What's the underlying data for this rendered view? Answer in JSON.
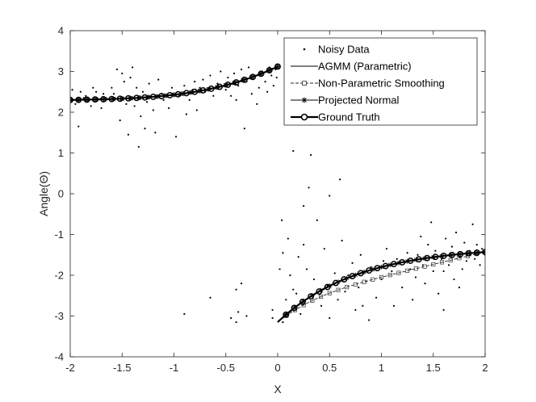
{
  "chart_data": {
    "type": "scatter",
    "title": "",
    "xlabel": "X",
    "ylabel": "Angle(Θ)",
    "xlim": [
      -2,
      2
    ],
    "ylim": [
      -4,
      4
    ],
    "xticks": [
      "-2",
      "-1.5",
      "-1",
      "-0.5",
      "0",
      "0.5",
      "1",
      "1.5",
      "2"
    ],
    "yticks": [
      "4",
      "3",
      "2",
      "1",
      "0",
      "-1",
      "-2",
      "-3",
      "-4"
    ],
    "grid": false,
    "legend_position": "top-right",
    "series": [
      {
        "name": "Noisy Data",
        "style": "dots",
        "points": [
          [
            -1.98,
            2.55
          ],
          [
            -1.95,
            2.2
          ],
          [
            -1.92,
            1.65
          ],
          [
            -1.9,
            2.5
          ],
          [
            -1.87,
            2.35
          ],
          [
            -1.85,
            2.4
          ],
          [
            -1.8,
            2.15
          ],
          [
            -1.78,
            2.6
          ],
          [
            -1.75,
            2.5
          ],
          [
            -1.7,
            2.1
          ],
          [
            -1.68,
            2.45
          ],
          [
            -1.62,
            2.3
          ],
          [
            -1.6,
            2.6
          ],
          [
            -1.58,
            2.45
          ],
          [
            -1.55,
            3.05
          ],
          [
            -1.52,
            1.8
          ],
          [
            -1.5,
            2.95
          ],
          [
            -1.48,
            2.75
          ],
          [
            -1.46,
            2.2
          ],
          [
            -1.44,
            1.45
          ],
          [
            -1.42,
            2.85
          ],
          [
            -1.4,
            3.1
          ],
          [
            -1.38,
            2.15
          ],
          [
            -1.36,
            2.6
          ],
          [
            -1.34,
            1.15
          ],
          [
            -1.32,
            1.9
          ],
          [
            -1.3,
            2.5
          ],
          [
            -1.28,
            1.6
          ],
          [
            -1.26,
            2.25
          ],
          [
            -1.24,
            2.7
          ],
          [
            -1.2,
            2.05
          ],
          [
            -1.18,
            1.5
          ],
          [
            -1.15,
            2.8
          ],
          [
            -1.12,
            2.45
          ],
          [
            -1.1,
            2.3
          ],
          [
            -1.05,
            2.1
          ],
          [
            -1.02,
            2.6
          ],
          [
            -0.98,
            1.4
          ],
          [
            -0.95,
            2.4
          ],
          [
            -0.9,
            2.65
          ],
          [
            -0.88,
            1.95
          ],
          [
            -0.85,
            2.3
          ],
          [
            -0.82,
            2.55
          ],
          [
            -0.8,
            2.75
          ],
          [
            -0.78,
            2.05
          ],
          [
            -0.75,
            2.6
          ],
          [
            -0.72,
            2.8
          ],
          [
            -0.7,
            2.5
          ],
          [
            -0.65,
            2.9
          ],
          [
            -0.62,
            2.4
          ],
          [
            -0.58,
            2.7
          ],
          [
            -0.55,
            3.0
          ],
          [
            -0.5,
            2.55
          ],
          [
            -0.48,
            2.85
          ],
          [
            -0.45,
            2.4
          ],
          [
            -0.42,
            2.95
          ],
          [
            -0.4,
            2.3
          ],
          [
            -0.38,
            2.65
          ],
          [
            -0.35,
            3.05
          ],
          [
            -0.32,
            1.6
          ],
          [
            -0.3,
            2.75
          ],
          [
            -0.28,
            3.1
          ],
          [
            -0.25,
            2.45
          ],
          [
            -0.22,
            2.9
          ],
          [
            -0.2,
            2.2
          ],
          [
            -0.18,
            2.6
          ],
          [
            -0.15,
            3.0
          ],
          [
            -0.12,
            2.75
          ],
          [
            -0.1,
            2.5
          ],
          [
            -0.08,
            3.1
          ],
          [
            -0.06,
            2.9
          ],
          [
            -0.04,
            2.65
          ],
          [
            -0.02,
            3.05
          ],
          [
            -0.01,
            2.85
          ],
          [
            -0.9,
            -2.95
          ],
          [
            -0.65,
            -2.55
          ],
          [
            -0.45,
            -3.05
          ],
          [
            -0.4,
            -3.15
          ],
          [
            -0.4,
            -2.35
          ],
          [
            -0.38,
            -2.9
          ],
          [
            -0.35,
            -2.2
          ],
          [
            -0.3,
            -3.0
          ],
          [
            -0.05,
            -3.05
          ],
          [
            -0.05,
            -2.85
          ],
          [
            0.02,
            -1.85
          ],
          [
            0.04,
            -0.65
          ],
          [
            0.05,
            -3.15
          ],
          [
            0.08,
            -2.6
          ],
          [
            0.1,
            -1.1
          ],
          [
            0.12,
            -2.0
          ],
          [
            0.15,
            1.05
          ],
          [
            0.18,
            -2.45
          ],
          [
            0.2,
            -1.55
          ],
          [
            0.22,
            -2.95
          ],
          [
            0.25,
            -0.3
          ],
          [
            0.28,
            -1.85
          ],
          [
            0.3,
            0.15
          ],
          [
            0.32,
            0.95
          ],
          [
            0.35,
            -2.1
          ],
          [
            0.38,
            -0.65
          ],
          [
            0.42,
            -2.75
          ],
          [
            0.45,
            -1.35
          ],
          [
            0.48,
            -2.25
          ],
          [
            0.5,
            -3.05
          ],
          [
            0.55,
            -1.95
          ],
          [
            0.58,
            -2.6
          ],
          [
            0.6,
            0.35
          ],
          [
            0.62,
            -1.15
          ],
          [
            0.65,
            -2.4
          ],
          [
            0.7,
            -2.05
          ],
          [
            0.72,
            -1.7
          ],
          [
            0.75,
            -2.85
          ],
          [
            0.78,
            -2.3
          ],
          [
            0.8,
            -1.5
          ],
          [
            0.85,
            -2.15
          ],
          [
            0.88,
            -3.1
          ],
          [
            0.9,
            -1.8
          ],
          [
            0.95,
            -2.55
          ],
          [
            1.0,
            -2.1
          ],
          [
            1.05,
            -1.35
          ],
          [
            1.1,
            -1.9
          ],
          [
            1.12,
            -2.75
          ],
          [
            1.15,
            -1.6
          ],
          [
            1.2,
            -2.3
          ],
          [
            1.25,
            -1.45
          ],
          [
            1.28,
            -1.85
          ],
          [
            1.3,
            -2.6
          ],
          [
            1.35,
            -1.5
          ],
          [
            1.38,
            -1.05
          ],
          [
            1.4,
            -1.75
          ],
          [
            1.42,
            -2.2
          ],
          [
            1.45,
            -1.25
          ],
          [
            1.48,
            -0.7
          ],
          [
            1.5,
            -1.9
          ],
          [
            1.52,
            -1.4
          ],
          [
            1.55,
            -2.45
          ],
          [
            1.58,
            -1.6
          ],
          [
            1.6,
            -2.85
          ],
          [
            1.62,
            -1.1
          ],
          [
            1.65,
            -1.75
          ],
          [
            1.68,
            -1.3
          ],
          [
            1.7,
            -2.1
          ],
          [
            1.72,
            -0.95
          ],
          [
            1.75,
            -1.55
          ],
          [
            1.78,
            -1.85
          ],
          [
            1.8,
            -1.2
          ],
          [
            1.82,
            -1.65
          ],
          [
            1.85,
            -1.4
          ],
          [
            1.88,
            -0.75
          ],
          [
            1.9,
            -1.6
          ],
          [
            1.92,
            -1.25
          ],
          [
            1.95,
            -1.75
          ],
          [
            1.97,
            -1.35
          ],
          [
            2.0,
            -1.5
          ],
          [
            0.5,
            -0.05
          ],
          [
            0.68,
            -2.0
          ],
          [
            1.02,
            -1.65
          ],
          [
            1.6,
            -1.9
          ],
          [
            1.75,
            -2.3
          ],
          [
            0.25,
            -1.25
          ],
          [
            0.82,
            -2.75
          ],
          [
            1.33,
            -2.05
          ],
          [
            0.15,
            -2.35
          ],
          [
            0.05,
            -1.45
          ]
        ]
      },
      {
        "name": "AGMM (Parametric)",
        "style": "line"
      },
      {
        "name": "Non-Parametric Smoothing",
        "style": "dashed-square"
      },
      {
        "name": "Projected Normal",
        "style": "asterisk"
      },
      {
        "name": "Ground Truth",
        "style": "thick-circle"
      }
    ],
    "curves": {
      "ground_truth": {
        "upper": {
          "x_range": [
            -2,
            0
          ],
          "y_at_start": 2.3,
          "y_at_end": 3.12
        },
        "lower": {
          "x_range": [
            0,
            2
          ],
          "y_at_start": -3.15,
          "y_at_end": -1.43
        }
      },
      "non_parametric_lower_offset": -0.25
    }
  }
}
